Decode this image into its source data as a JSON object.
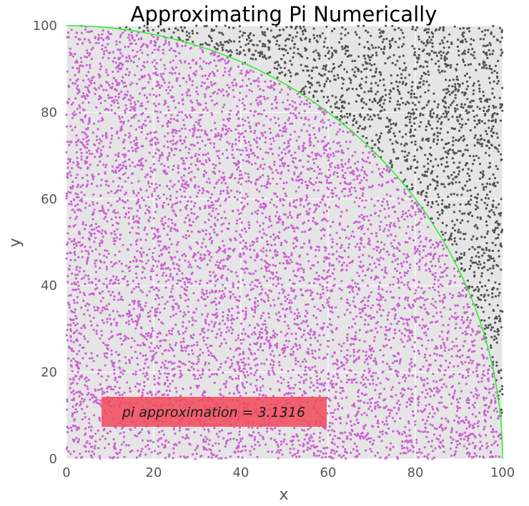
{
  "chart_data": {
    "type": "scatter",
    "title": "Approximating Pi Numerically",
    "xlabel": "x",
    "ylabel": "y",
    "xlim": [
      0,
      100
    ],
    "ylim": [
      0,
      100
    ],
    "xticks": [
      "0",
      "20",
      "40",
      "60",
      "80",
      "100"
    ],
    "yticks": [
      "0",
      "20",
      "40",
      "60",
      "80",
      "100"
    ],
    "grid": true,
    "total_points": 10000,
    "inside_points": 7829,
    "outside_points": 2171,
    "series": [
      {
        "role": "inside quarter circle",
        "color": "#c238c8"
      },
      {
        "role": "outside quarter circle",
        "color": "#222222"
      }
    ],
    "boundary_curve": {
      "equation": "x^2 + y^2 = 100^2",
      "color": "#33ee33"
    },
    "annotation": {
      "text": "pi approximation = 3.1316",
      "box_color": "#f24a5a"
    }
  }
}
